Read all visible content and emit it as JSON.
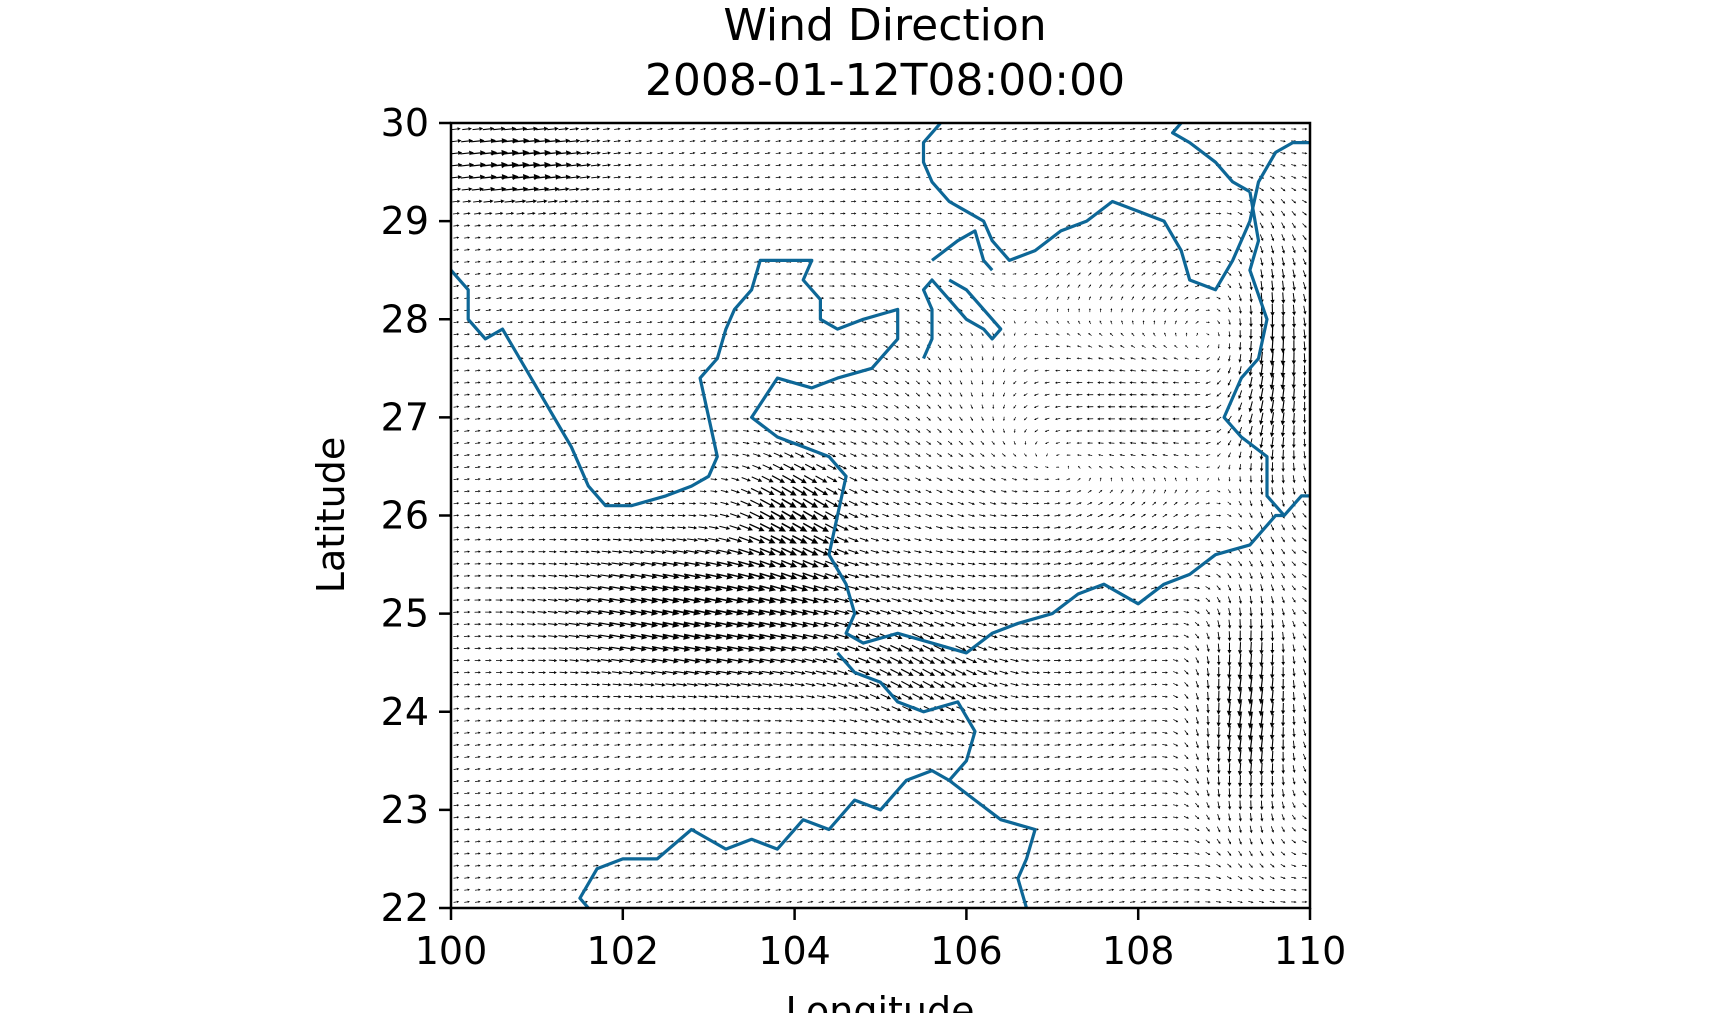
{
  "chart_data": {
    "type": "quiver",
    "title": "Wind Direction",
    "subtitle": "2008-01-12T08:00:00",
    "xlabel": "Longitude",
    "ylabel": "Latitude",
    "xlim": [
      100,
      110
    ],
    "ylim": [
      22,
      30
    ],
    "xticks": [
      100,
      102,
      104,
      106,
      108,
      110
    ],
    "yticks": [
      22,
      23,
      24,
      25,
      26,
      27,
      28,
      29,
      30
    ],
    "grid": false,
    "legend": "none",
    "arrow_color": "#000000",
    "boundary_color": "#0d6797",
    "vector_field": {
      "x_range": [
        100,
        110
      ],
      "y_range": [
        22,
        30
      ],
      "nx": 80,
      "ny": 65,
      "description_unit": "relative wind vectors (u, v)"
    },
    "boundaries": [
      [
        [
          100.0,
          28.5
        ],
        [
          100.2,
          28.3
        ],
        [
          100.2,
          28.0
        ],
        [
          100.4,
          27.8
        ],
        [
          100.6,
          27.9
        ],
        [
          100.8,
          27.6
        ],
        [
          101.0,
          27.3
        ],
        [
          101.2,
          27.0
        ],
        [
          101.4,
          26.7
        ],
        [
          101.6,
          26.3
        ],
        [
          101.8,
          26.1
        ],
        [
          102.1,
          26.1
        ],
        [
          102.5,
          26.2
        ],
        [
          102.8,
          26.3
        ],
        [
          103.0,
          26.4
        ],
        [
          103.1,
          26.6
        ],
        [
          103.0,
          27.0
        ],
        [
          102.9,
          27.4
        ],
        [
          103.1,
          27.6
        ],
        [
          103.2,
          27.9
        ],
        [
          103.3,
          28.1
        ],
        [
          103.5,
          28.3
        ],
        [
          103.6,
          28.6
        ],
        [
          103.9,
          28.6
        ],
        [
          104.2,
          28.6
        ],
        [
          104.1,
          28.4
        ],
        [
          104.3,
          28.2
        ],
        [
          104.3,
          28.0
        ],
        [
          104.5,
          27.9
        ],
        [
          104.8,
          28.0
        ],
        [
          105.2,
          28.1
        ],
        [
          105.2,
          27.8
        ],
        [
          104.9,
          27.5
        ],
        [
          104.5,
          27.4
        ],
        [
          104.2,
          27.3
        ],
        [
          103.8,
          27.4
        ],
        [
          103.5,
          27.0
        ],
        [
          103.8,
          26.8
        ],
        [
          104.1,
          26.7
        ],
        [
          104.4,
          26.6
        ],
        [
          104.6,
          26.4
        ],
        [
          104.5,
          26.0
        ],
        [
          104.4,
          25.6
        ],
        [
          104.6,
          25.3
        ],
        [
          104.7,
          25.0
        ],
        [
          104.6,
          24.8
        ],
        [
          104.8,
          24.7
        ],
        [
          105.2,
          24.8
        ],
        [
          105.6,
          24.7
        ],
        [
          106.0,
          24.6
        ],
        [
          106.3,
          24.8
        ],
        [
          106.6,
          24.9
        ],
        [
          107.0,
          25.0
        ],
        [
          107.3,
          25.2
        ],
        [
          107.6,
          25.3
        ],
        [
          108.0,
          25.1
        ],
        [
          108.3,
          25.3
        ],
        [
          108.6,
          25.4
        ],
        [
          108.9,
          25.6
        ],
        [
          109.3,
          25.7
        ],
        [
          109.6,
          26.0
        ],
        [
          109.7,
          26.0
        ],
        [
          109.9,
          26.2
        ],
        [
          110.0,
          26.2
        ]
      ],
      [
        [
          105.7,
          30.0
        ],
        [
          105.5,
          29.8
        ],
        [
          105.5,
          29.6
        ],
        [
          105.6,
          29.4
        ],
        [
          105.8,
          29.2
        ],
        [
          106.0,
          29.1
        ],
        [
          106.2,
          29.0
        ],
        [
          106.3,
          28.8
        ],
        [
          106.5,
          28.6
        ],
        [
          106.8,
          28.7
        ],
        [
          107.1,
          28.9
        ],
        [
          107.4,
          29.0
        ],
        [
          107.7,
          29.2
        ],
        [
          108.0,
          29.1
        ],
        [
          108.3,
          29.0
        ],
        [
          108.5,
          28.7
        ],
        [
          108.6,
          28.4
        ],
        [
          108.9,
          28.3
        ],
        [
          109.1,
          28.6
        ],
        [
          109.3,
          29.0
        ],
        [
          109.4,
          29.4
        ],
        [
          109.6,
          29.7
        ],
        [
          109.8,
          29.8
        ],
        [
          110.0,
          29.8
        ]
      ],
      [
        [
          108.5,
          30.0
        ],
        [
          108.4,
          29.9
        ],
        [
          108.6,
          29.8
        ],
        [
          108.9,
          29.6
        ],
        [
          109.1,
          29.4
        ],
        [
          109.3,
          29.3
        ]
      ],
      [
        [
          105.6,
          28.6
        ],
        [
          105.9,
          28.8
        ],
        [
          106.1,
          28.9
        ],
        [
          106.2,
          28.6
        ],
        [
          106.3,
          28.5
        ]
      ],
      [
        [
          105.5,
          27.6
        ],
        [
          105.6,
          27.8
        ],
        [
          105.6,
          28.1
        ],
        [
          105.5,
          28.3
        ],
        [
          105.6,
          28.4
        ],
        [
          105.8,
          28.2
        ],
        [
          106.0,
          28.0
        ],
        [
          106.2,
          27.9
        ],
        [
          106.3,
          27.8
        ],
        [
          106.4,
          27.9
        ],
        [
          106.0,
          28.3
        ],
        [
          105.8,
          28.4
        ]
      ],
      [
        [
          109.3,
          29.3
        ],
        [
          109.4,
          28.8
        ],
        [
          109.3,
          28.5
        ],
        [
          109.5,
          28.0
        ],
        [
          109.4,
          27.6
        ],
        [
          109.2,
          27.4
        ],
        [
          109.0,
          27.0
        ],
        [
          109.2,
          26.8
        ],
        [
          109.5,
          26.6
        ],
        [
          109.5,
          26.2
        ],
        [
          109.7,
          26.0
        ]
      ],
      [
        [
          104.5,
          24.6
        ],
        [
          104.7,
          24.4
        ],
        [
          105.0,
          24.3
        ],
        [
          105.2,
          24.1
        ],
        [
          105.5,
          24.0
        ],
        [
          105.9,
          24.1
        ],
        [
          106.1,
          23.8
        ],
        [
          106.0,
          23.5
        ],
        [
          105.8,
          23.3
        ],
        [
          105.6,
          23.4
        ],
        [
          105.3,
          23.3
        ],
        [
          105.0,
          23.0
        ],
        [
          104.7,
          23.1
        ],
        [
          104.4,
          22.8
        ],
        [
          104.1,
          22.9
        ],
        [
          103.8,
          22.6
        ],
        [
          103.5,
          22.7
        ],
        [
          103.2,
          22.6
        ],
        [
          102.8,
          22.8
        ],
        [
          102.4,
          22.5
        ],
        [
          102.0,
          22.5
        ],
        [
          101.7,
          22.4
        ],
        [
          101.5,
          22.1
        ],
        [
          101.6,
          22.0
        ]
      ],
      [
        [
          105.8,
          23.3
        ],
        [
          106.1,
          23.1
        ],
        [
          106.4,
          22.9
        ],
        [
          106.8,
          22.8
        ],
        [
          106.7,
          22.5
        ],
        [
          106.6,
          22.3
        ],
        [
          106.7,
          22.0
        ]
      ]
    ]
  }
}
